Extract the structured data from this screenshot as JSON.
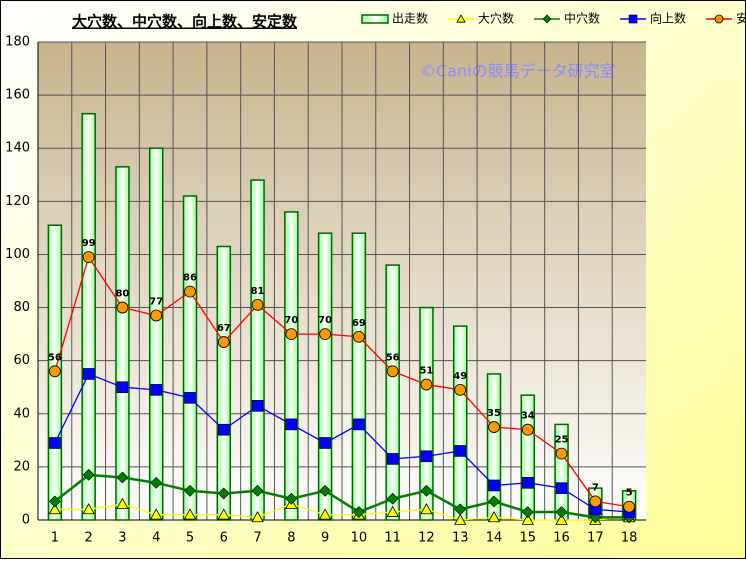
{
  "chart_data": {
    "type": "bar-line",
    "title": "大穴数、中穴数、向上数、安定数",
    "watermark": "©Caniの競馬データ研究室",
    "categories": [
      "1",
      "2",
      "3",
      "4",
      "5",
      "6",
      "7",
      "8",
      "9",
      "10",
      "11",
      "12",
      "13",
      "14",
      "15",
      "16",
      "17",
      "18"
    ],
    "series": [
      {
        "name": "出走数",
        "type": "bar",
        "color": "#006600",
        "values": [
          111,
          153,
          133,
          140,
          122,
          103,
          128,
          116,
          108,
          108,
          96,
          80,
          73,
          55,
          47,
          36,
          12,
          11
        ]
      },
      {
        "name": "大穴数",
        "type": "line",
        "marker": "triangle",
        "color": "#ffff00",
        "values": [
          4,
          4,
          6,
          2,
          2,
          2,
          1,
          6,
          2,
          2,
          3,
          4,
          0,
          1,
          0,
          0,
          0,
          1
        ]
      },
      {
        "name": "中穴数",
        "type": "line",
        "marker": "diamond",
        "color": "#008000",
        "values": [
          7,
          17,
          16,
          14,
          11,
          10,
          11,
          8,
          11,
          3,
          8,
          11,
          4,
          7,
          3,
          3,
          1,
          1
        ]
      },
      {
        "name": "向上数",
        "type": "line",
        "marker": "square",
        "color": "#0000ff",
        "values": [
          29,
          55,
          50,
          49,
          46,
          34,
          43,
          36,
          29,
          36,
          23,
          24,
          26,
          13,
          14,
          12,
          4,
          3
        ]
      },
      {
        "name": "安定数",
        "type": "line",
        "marker": "circle",
        "color": "#ff0000",
        "marker_color": "#ff9900",
        "data_labels": true,
        "values": [
          56,
          99,
          80,
          77,
          86,
          67,
          81,
          70,
          70,
          69,
          56,
          51,
          49,
          35,
          34,
          25,
          7,
          5
        ]
      }
    ],
    "ylim": [
      0,
      180
    ],
    "yticks": [
      0,
      20,
      40,
      60,
      80,
      100,
      120,
      140,
      160,
      180
    ],
    "grid": true
  }
}
